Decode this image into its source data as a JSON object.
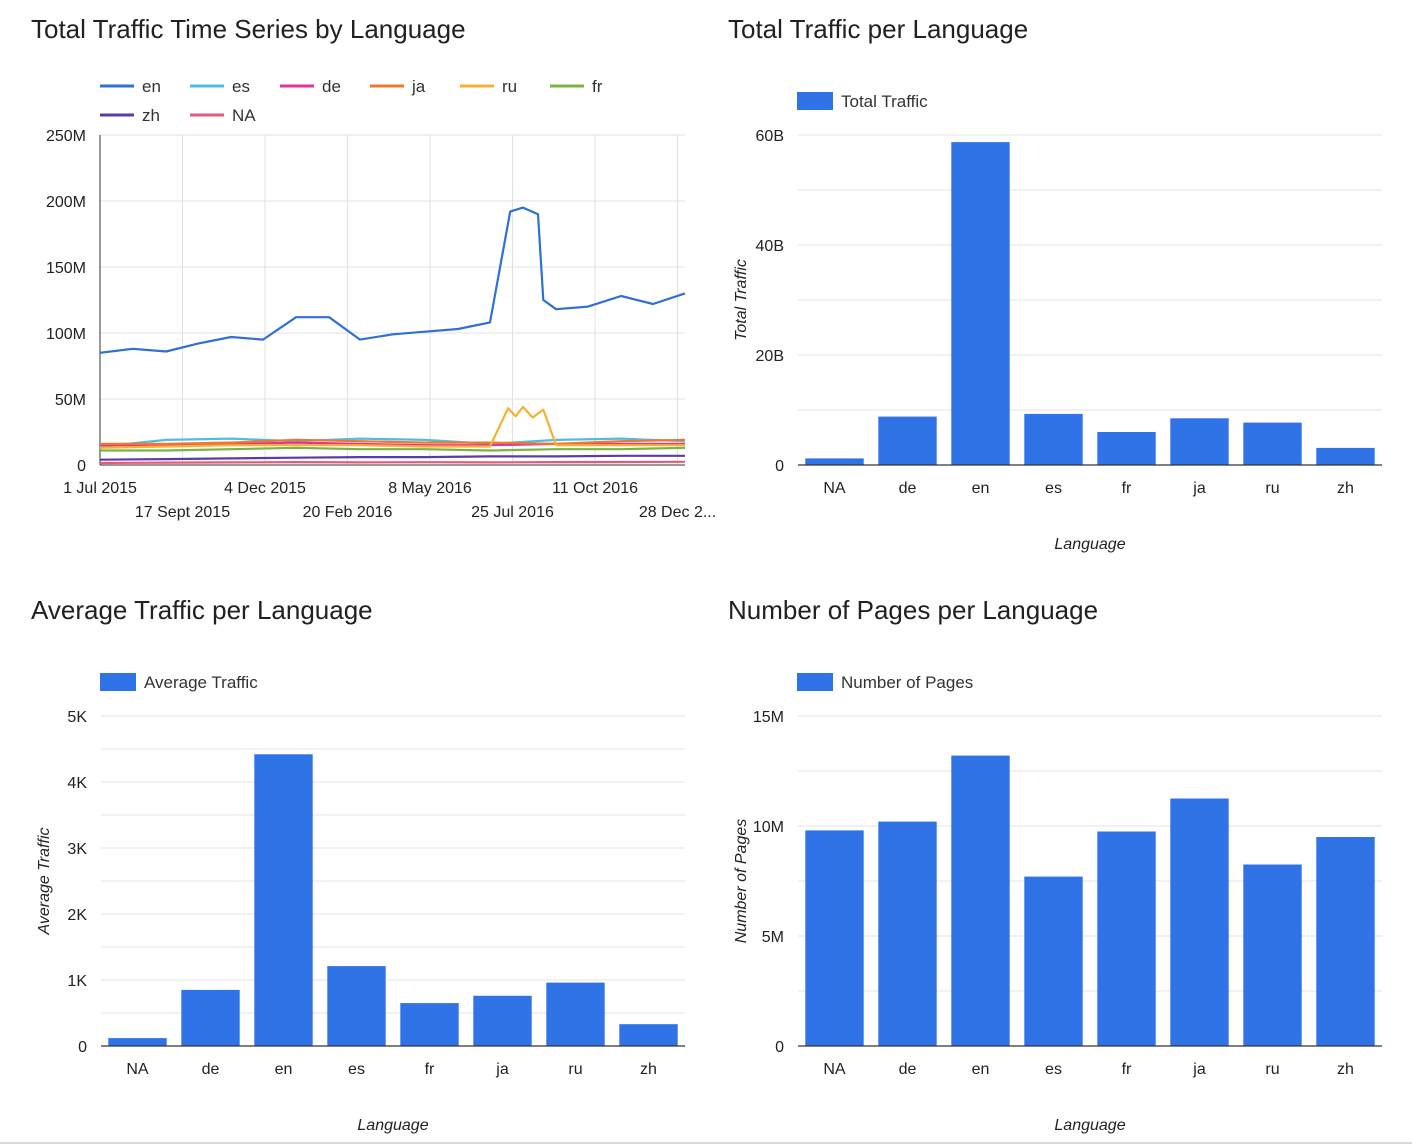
{
  "chart_data": [
    {
      "type": "line",
      "title": "Total Traffic Time Series by Language",
      "x_tick_labels": [
        "1 Jul 2015",
        "17 Sept 2015",
        "4 Dec 2015",
        "20 Feb 2016",
        "8 May 2016",
        "25 Jul 2016",
        "11 Oct 2016",
        "28 Dec 2..."
      ],
      "y_tick_labels": [
        "0",
        "50M",
        "100M",
        "150M",
        "200M",
        "250M"
      ],
      "ylim": [
        0,
        250000000
      ],
      "xlim": [
        "2015-07-01",
        "2016-12-31"
      ],
      "grid": true,
      "legend_position": "top",
      "series": [
        {
          "name": "en",
          "color": "#2f6fd6",
          "x": [
            "2015-07-01",
            "2015-08-01",
            "2015-09-01",
            "2015-10-01",
            "2015-11-01",
            "2015-12-01",
            "2016-01-01",
            "2016-02-01",
            "2016-03-01",
            "2016-04-01",
            "2016-05-01",
            "2016-06-01",
            "2016-07-01",
            "2016-07-20",
            "2016-08-01",
            "2016-08-15",
            "2016-08-20",
            "2016-09-01",
            "2016-10-01",
            "2016-11-01",
            "2016-12-01",
            "2016-12-31"
          ],
          "values": [
            85000000,
            88000000,
            86000000,
            92000000,
            97000000,
            95000000,
            112000000,
            112000000,
            95000000,
            99000000,
            101000000,
            103000000,
            108000000,
            192000000,
            195000000,
            190000000,
            125000000,
            118000000,
            120000000,
            128000000,
            122000000,
            130000000
          ]
        },
        {
          "name": "es",
          "color": "#4fbde3",
          "x": [
            "2015-07-01",
            "2015-09-01",
            "2015-11-01",
            "2016-01-01",
            "2016-03-01",
            "2016-05-01",
            "2016-07-01",
            "2016-09-01",
            "2016-11-01",
            "2016-12-31"
          ],
          "values": [
            14000000,
            19000000,
            20000000,
            18000000,
            20000000,
            19000000,
            16000000,
            19000000,
            20000000,
            18000000
          ]
        },
        {
          "name": "de",
          "color": "#e0369a",
          "x": [
            "2015-07-01",
            "2015-09-01",
            "2015-11-01",
            "2016-01-01",
            "2016-03-01",
            "2016-05-01",
            "2016-07-01",
            "2016-09-01",
            "2016-11-01",
            "2016-12-31"
          ],
          "values": [
            15000000,
            15000000,
            16000000,
            17000000,
            16000000,
            15000000,
            15000000,
            16000000,
            16000000,
            16000000
          ]
        },
        {
          "name": "ja",
          "color": "#f0782b",
          "x": [
            "2015-07-01",
            "2015-09-01",
            "2015-11-01",
            "2016-01-01",
            "2016-03-01",
            "2016-05-01",
            "2016-07-01",
            "2016-09-01",
            "2016-11-01",
            "2016-12-31"
          ],
          "values": [
            16000000,
            16000000,
            17000000,
            19000000,
            18000000,
            17000000,
            17000000,
            16000000,
            18000000,
            19000000
          ]
        },
        {
          "name": "ru",
          "color": "#f5b133",
          "x": [
            "2015-07-01",
            "2015-09-01",
            "2015-11-01",
            "2016-01-01",
            "2016-03-01",
            "2016-05-01",
            "2016-07-01",
            "2016-07-18",
            "2016-07-25",
            "2016-08-01",
            "2016-08-10",
            "2016-08-20",
            "2016-09-01",
            "2016-11-01",
            "2016-12-31"
          ],
          "values": [
            13000000,
            14000000,
            15000000,
            15000000,
            15000000,
            14000000,
            14000000,
            43000000,
            37000000,
            44000000,
            36000000,
            42000000,
            15000000,
            15000000,
            15000000
          ]
        },
        {
          "name": "fr",
          "color": "#7cb342",
          "x": [
            "2015-07-01",
            "2015-09-01",
            "2015-11-01",
            "2016-01-01",
            "2016-03-01",
            "2016-05-01",
            "2016-07-01",
            "2016-09-01",
            "2016-11-01",
            "2016-12-31"
          ],
          "values": [
            11000000,
            11000000,
            12000000,
            13000000,
            12000000,
            12000000,
            11000000,
            12000000,
            12000000,
            13000000
          ]
        },
        {
          "name": "zh",
          "color": "#5b3ba8",
          "x": [
            "2015-07-01",
            "2015-09-01",
            "2015-11-01",
            "2016-01-01",
            "2016-03-01",
            "2016-05-01",
            "2016-07-01",
            "2016-09-01",
            "2016-11-01",
            "2016-12-31"
          ],
          "values": [
            4000000,
            4500000,
            5000000,
            5500000,
            6000000,
            6000000,
            6500000,
            6500000,
            7000000,
            7000000
          ]
        },
        {
          "name": "NA",
          "color": "#e8587a",
          "x": [
            "2015-07-01",
            "2015-09-01",
            "2015-11-01",
            "2016-01-01",
            "2016-03-01",
            "2016-05-01",
            "2016-07-01",
            "2016-09-01",
            "2016-11-01",
            "2016-12-31"
          ],
          "values": [
            1500000,
            1800000,
            2000000,
            2200000,
            2000000,
            2100000,
            2000000,
            2200000,
            2300000,
            2400000
          ]
        }
      ]
    },
    {
      "type": "bar",
      "title": "Total Traffic per Language",
      "categories": [
        "NA",
        "de",
        "en",
        "es",
        "fr",
        "ja",
        "ru",
        "zh"
      ],
      "series": [
        {
          "name": "Total Traffic",
          "values": [
            1200000000,
            8800000000,
            58700000000,
            9300000000,
            6000000000,
            8500000000,
            7700000000,
            3100000000
          ]
        }
      ],
      "y_tick_labels": [
        "0",
        "20B",
        "40B",
        "60B"
      ],
      "ylim": [
        0,
        60000000000
      ],
      "xlabel": "Language",
      "ylabel": "Total Traffic",
      "grid": true,
      "legend_position": "top-left",
      "color": "#2f73e6"
    },
    {
      "type": "bar",
      "title": "Average Traffic per Language",
      "categories": [
        "NA",
        "de",
        "en",
        "es",
        "fr",
        "ja",
        "ru",
        "zh"
      ],
      "series": [
        {
          "name": "Average Traffic",
          "values": [
            120,
            850,
            4420,
            1210,
            650,
            760,
            960,
            330
          ]
        }
      ],
      "y_tick_labels": [
        "0",
        "1K",
        "2K",
        "3K",
        "4K",
        "5K"
      ],
      "ylim": [
        0,
        5000
      ],
      "xlabel": "Language",
      "ylabel": "Average Traffic",
      "grid": true,
      "legend_position": "top-left",
      "color": "#2f73e6"
    },
    {
      "type": "bar",
      "title": "Number of Pages per Language",
      "categories": [
        "NA",
        "de",
        "en",
        "es",
        "fr",
        "ja",
        "ru",
        "zh"
      ],
      "series": [
        {
          "name": "Number of Pages",
          "values": [
            9800000,
            10200000,
            13200000,
            7700000,
            9750000,
            11250000,
            8250000,
            9500000
          ]
        }
      ],
      "y_tick_labels": [
        "0",
        "5M",
        "10M",
        "15M"
      ],
      "ylim": [
        0,
        15000000
      ],
      "xlabel": "Language",
      "ylabel": "Number of Pages",
      "grid": true,
      "legend_position": "top-left",
      "color": "#2f73e6"
    }
  ]
}
